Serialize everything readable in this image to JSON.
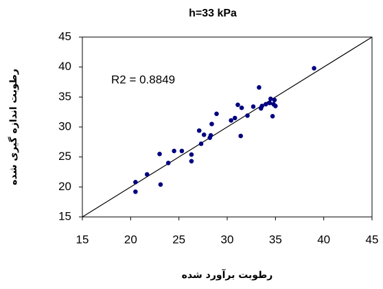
{
  "chart_data": {
    "type": "scatter",
    "title": "h=33 kPa",
    "x_label": "رطوبت برآورد شده",
    "y_label": "رطوبت اندازه گیری شده",
    "annotation": "R2 = 0.8849",
    "xlim": [
      15,
      45
    ],
    "xticks": [
      15,
      20,
      25,
      30,
      35,
      40,
      45
    ],
    "ylim": [
      15,
      45
    ],
    "yticks": [
      15,
      20,
      25,
      30,
      35,
      40,
      45
    ],
    "grid": false,
    "series": [
      {
        "color": "#000080",
        "x": [
          20.5,
          20.5,
          21.7,
          23.0,
          23.1,
          23.9,
          24.5,
          25.3,
          26.3,
          26.3,
          27.1,
          27.3,
          27.6,
          28.2,
          28.3,
          28.4,
          28.9,
          30.4,
          30.8,
          31.1,
          31.4,
          31.5,
          32.1,
          32.7,
          33.3,
          33.5,
          33.6,
          34.0,
          34.4,
          34.5,
          34.7,
          34.8,
          34.9,
          35.0,
          39.0
        ],
        "values": [
          20.8,
          19.2,
          22.1,
          25.5,
          20.4,
          24.0,
          26.0,
          26.0,
          25.4,
          24.3,
          29.4,
          27.2,
          28.7,
          28.2,
          28.6,
          30.5,
          32.2,
          31.1,
          31.5,
          33.7,
          28.5,
          33.2,
          31.9,
          33.4,
          36.6,
          33.1,
          33.5,
          33.8,
          34.0,
          34.7,
          31.8,
          33.8,
          34.5,
          33.5,
          39.8
        ]
      }
    ]
  }
}
